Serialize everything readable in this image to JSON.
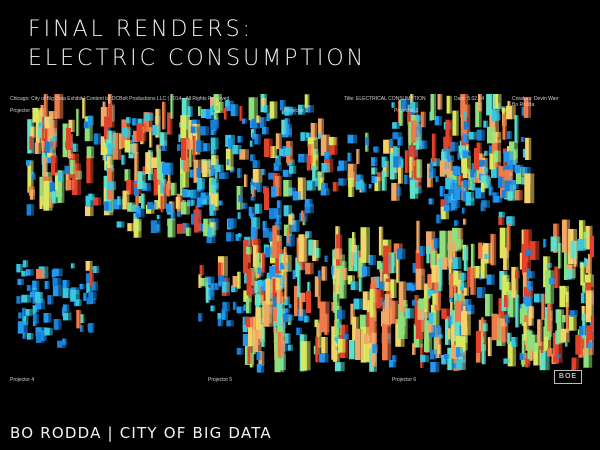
{
  "title": {
    "line1": "FINAL RENDERS:",
    "line2": "ELECTRIC CONSUMPTION"
  },
  "render": {
    "credit": "Chicago: City of Big Data Exhibit  |  Content by DCBolt Productions LLC  |  2014 - All Rights Reserved",
    "caption_title": "Title: ELECTRICAL CONSUMPTION",
    "date": "Date: 5.02.14",
    "creators": [
      "Creators: Devin Warr",
      "Bo Rodda"
    ],
    "projectors": [
      "Projector 1",
      "Projector 2",
      "Projector 3",
      "Projector 4",
      "Projector 5",
      "Projector 6"
    ],
    "logo_text": "BOE",
    "palette": [
      "#1a7fd6",
      "#2196f3",
      "#37c7e0",
      "#5fe0c8",
      "#8ee07a",
      "#d9e85c",
      "#f5d36a",
      "#f2a866",
      "#ef7a4a",
      "#e2412a"
    ],
    "icons": [
      "city-render-icon"
    ]
  },
  "footer": {
    "text": "BO RODDA | CITY OF BIG DATA"
  }
}
